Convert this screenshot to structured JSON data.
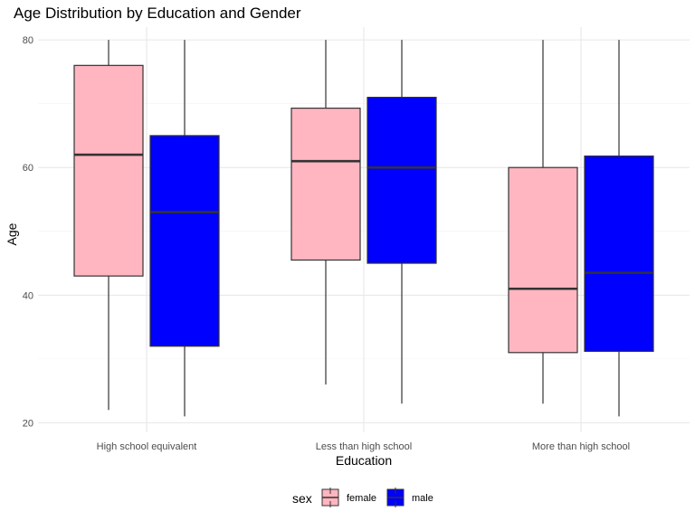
{
  "chart_data": {
    "type": "boxplot",
    "title": "Age Distribution by Education and Gender",
    "xlabel": "Education",
    "ylabel": "Age",
    "categories": [
      "High school equivalent",
      "Less than high school",
      "More than high school"
    ],
    "ylim": [
      18.5,
      82
    ],
    "yticks": [
      20,
      40,
      60,
      80
    ],
    "grid": true,
    "legend_position": "bottom",
    "legend_title": "sex",
    "series": [
      {
        "name": "female",
        "color": "#FFB6C1",
        "boxes": [
          {
            "min": 22,
            "q1": 43,
            "median": 62,
            "q3": 76,
            "max": 80
          },
          {
            "min": 26,
            "q1": 45.5,
            "median": 61,
            "q3": 69.3,
            "max": 80
          },
          {
            "min": 23,
            "q1": 31,
            "median": 41,
            "q3": 60,
            "max": 80
          }
        ]
      },
      {
        "name": "male",
        "color": "#0000FF",
        "boxes": [
          {
            "min": 21,
            "q1": 32,
            "median": 53,
            "q3": 65,
            "max": 80
          },
          {
            "min": 23,
            "q1": 45,
            "median": 60,
            "q3": 71,
            "max": 80
          },
          {
            "min": 21,
            "q1": 31.2,
            "median": 43.5,
            "q3": 61.8,
            "max": 80
          }
        ]
      }
    ]
  }
}
